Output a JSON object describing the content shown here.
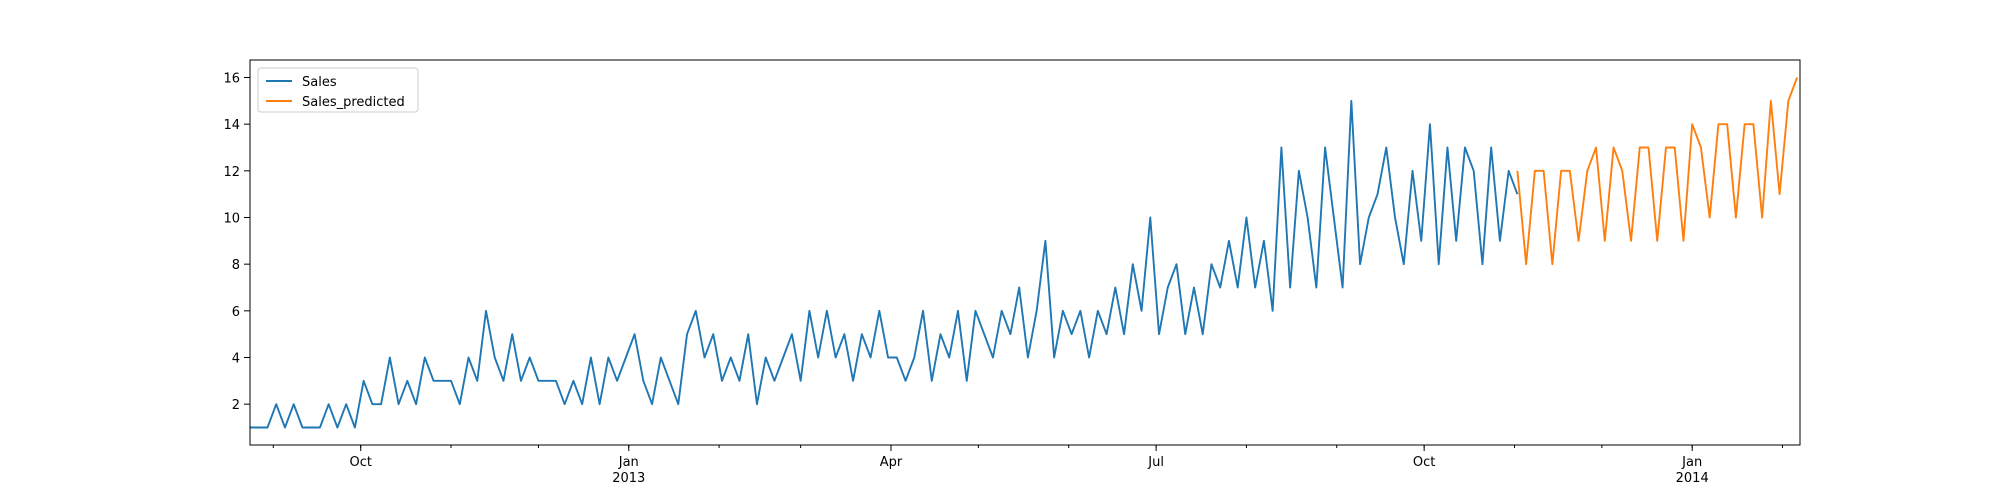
{
  "chart_data": {
    "type": "line",
    "xlim": [
      "2012-08-24",
      "2014-02-07"
    ],
    "xticks": [
      {
        "value": "2012-10-01",
        "label": "Oct"
      },
      {
        "value": "2013-01-01",
        "label": "Jan\n2013"
      },
      {
        "value": "2013-04-01",
        "label": "Apr"
      },
      {
        "value": "2013-07-01",
        "label": "Jul"
      },
      {
        "value": "2013-10-01",
        "label": "Oct"
      },
      {
        "value": "2014-01-01",
        "label": "Jan\n2014"
      }
    ],
    "ylim": [
      0.25,
      16.75
    ],
    "yticks": [
      2,
      4,
      6,
      8,
      10,
      12,
      14,
      16
    ],
    "legend": "upper left",
    "series": [
      {
        "name": "Sales",
        "color": "#1f77b4",
        "x": [
          "2012-08-24",
          "2012-08-27",
          "2012-08-30",
          "2012-09-02",
          "2012-09-05",
          "2012-09-08",
          "2012-09-11",
          "2012-09-14",
          "2012-09-17",
          "2012-09-20",
          "2012-09-23",
          "2012-09-26",
          "2012-09-29",
          "2012-10-02",
          "2012-10-05",
          "2012-10-08",
          "2012-10-11",
          "2012-10-14",
          "2012-10-17",
          "2012-10-20",
          "2012-10-23",
          "2012-10-26",
          "2012-10-29",
          "2012-11-01",
          "2012-11-04",
          "2012-11-07",
          "2012-11-10",
          "2012-11-13",
          "2012-11-16",
          "2012-11-19",
          "2012-11-22",
          "2012-11-25",
          "2012-11-28",
          "2012-12-01",
          "2012-12-04",
          "2012-12-07",
          "2012-12-10",
          "2012-12-13",
          "2012-12-16",
          "2012-12-19",
          "2012-12-22",
          "2012-12-25",
          "2012-12-28",
          "2012-12-31",
          "2013-01-03",
          "2013-01-06",
          "2013-01-09",
          "2013-01-12",
          "2013-01-15",
          "2013-01-18",
          "2013-01-21",
          "2013-01-24",
          "2013-01-27",
          "2013-01-30",
          "2013-02-02",
          "2013-02-05",
          "2013-02-08",
          "2013-02-11",
          "2013-02-14",
          "2013-02-17",
          "2013-02-20",
          "2013-02-23",
          "2013-02-26",
          "2013-03-01",
          "2013-03-04",
          "2013-03-07",
          "2013-03-10",
          "2013-03-13",
          "2013-03-16",
          "2013-03-19",
          "2013-03-22",
          "2013-03-25",
          "2013-03-28",
          "2013-03-31",
          "2013-04-03",
          "2013-04-06",
          "2013-04-09",
          "2013-04-12",
          "2013-04-15",
          "2013-04-18",
          "2013-04-21",
          "2013-04-24",
          "2013-04-27",
          "2013-04-30",
          "2013-05-03",
          "2013-05-06",
          "2013-05-09",
          "2013-05-12",
          "2013-05-15",
          "2013-05-18",
          "2013-05-21",
          "2013-05-24",
          "2013-05-27",
          "2013-05-30",
          "2013-06-02",
          "2013-06-05",
          "2013-06-08",
          "2013-06-11",
          "2013-06-14",
          "2013-06-17",
          "2013-06-20",
          "2013-06-23",
          "2013-06-26",
          "2013-06-29",
          "2013-07-02",
          "2013-07-05",
          "2013-07-08",
          "2013-07-11",
          "2013-07-14",
          "2013-07-17",
          "2013-07-20",
          "2013-07-23",
          "2013-07-26",
          "2013-07-29",
          "2013-08-01",
          "2013-08-04",
          "2013-08-07",
          "2013-08-10",
          "2013-08-13",
          "2013-08-16",
          "2013-08-19",
          "2013-08-22",
          "2013-08-25",
          "2013-08-28",
          "2013-08-31",
          "2013-09-03",
          "2013-09-06",
          "2013-09-09",
          "2013-09-12",
          "2013-09-15",
          "2013-09-18",
          "2013-09-21",
          "2013-09-24",
          "2013-09-27",
          "2013-09-30",
          "2013-10-03",
          "2013-10-06",
          "2013-10-09",
          "2013-10-12",
          "2013-10-15",
          "2013-10-18",
          "2013-10-21",
          "2013-10-24",
          "2013-10-27",
          "2013-10-30",
          "2013-11-02"
        ],
        "values": [
          1,
          1,
          1,
          2,
          1,
          2,
          1,
          1,
          1,
          2,
          1,
          2,
          1,
          3,
          2,
          2,
          4,
          2,
          3,
          2,
          4,
          3,
          3,
          3,
          2,
          4,
          3,
          6,
          4,
          3,
          5,
          3,
          4,
          3,
          3,
          3,
          2,
          3,
          2,
          4,
          2,
          4,
          3,
          4,
          5,
          3,
          2,
          4,
          3,
          2,
          5,
          6,
          4,
          5,
          3,
          4,
          3,
          5,
          2,
          4,
          3,
          4,
          5,
          3,
          6,
          4,
          6,
          4,
          5,
          3,
          5,
          4,
          6,
          4,
          4,
          3,
          4,
          6,
          3,
          5,
          4,
          6,
          3,
          6,
          5,
          4,
          6,
          5,
          7,
          4,
          6,
          9,
          4,
          6,
          5,
          6,
          4,
          6,
          5,
          7,
          5,
          8,
          6,
          10,
          5,
          7,
          8,
          5,
          7,
          5,
          8,
          7,
          9,
          7,
          10,
          7,
          9,
          6,
          13,
          7,
          12,
          10,
          7,
          13,
          10,
          7,
          15,
          8,
          10,
          11,
          13,
          10,
          8,
          12,
          9,
          14,
          8,
          13,
          9,
          13,
          12,
          8,
          13,
          9,
          12,
          11
        ]
      },
      {
        "name": "Sales_predicted",
        "color": "#ff7f0e",
        "x": [
          "2013-11-02",
          "2013-11-05",
          "2013-11-08",
          "2013-11-11",
          "2013-11-14",
          "2013-11-17",
          "2013-11-20",
          "2013-11-23",
          "2013-11-26",
          "2013-11-29",
          "2013-12-02",
          "2013-12-05",
          "2013-12-08",
          "2013-12-11",
          "2013-12-14",
          "2013-12-17",
          "2013-12-20",
          "2013-12-23",
          "2013-12-26",
          "2013-12-29",
          "2014-01-01",
          "2014-01-04",
          "2014-01-07",
          "2014-01-10",
          "2014-01-13",
          "2014-01-16",
          "2014-01-19",
          "2014-01-22",
          "2014-01-25",
          "2014-01-28",
          "2014-01-31",
          "2014-02-03",
          "2014-02-06"
        ],
        "values": [
          12,
          8,
          12,
          12,
          8,
          12,
          12,
          9,
          12,
          13,
          9,
          13,
          12,
          9,
          13,
          13,
          9,
          13,
          13,
          9,
          14,
          13,
          10,
          14,
          14,
          10,
          14,
          14,
          10,
          15,
          11,
          15,
          16
        ]
      }
    ]
  }
}
